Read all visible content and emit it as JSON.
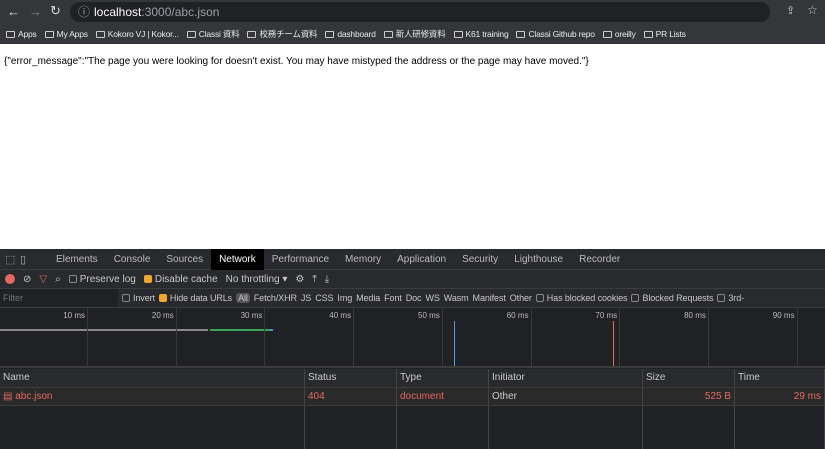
{
  "browser": {
    "url_host": "localhost",
    "url_path": ":3000/abc.json",
    "bookmarks": [
      "Apps",
      "My Apps",
      "Kokoro VJ | Kokor...",
      "Classi 資料",
      "校務チーム資料",
      "dashboard",
      "新人研修資料",
      "K61 training",
      "Classi Github repo",
      "oreilly",
      "PR Lists"
    ]
  },
  "page": {
    "body": "{\"error_message\":\"The page you were looking for doesn't exist. You may have mistyped the address or the page may have moved.\"}"
  },
  "devtools": {
    "tabs": [
      "Elements",
      "Console",
      "Sources",
      "Network",
      "Performance",
      "Memory",
      "Application",
      "Security",
      "Lighthouse",
      "Recorder"
    ],
    "active_tab": "Network",
    "toolbar": {
      "preserve_log": "Preserve log",
      "disable_cache": "Disable cache",
      "throttling": "No throttling"
    },
    "filter": {
      "placeholder": "Filter",
      "invert": "Invert",
      "hide_data_urls": "Hide data URLs",
      "types": [
        "All",
        "Fetch/XHR",
        "JS",
        "CSS",
        "Img",
        "Media",
        "Font",
        "Doc",
        "WS",
        "Wasm",
        "Manifest",
        "Other"
      ],
      "has_blocked_cookies": "Has blocked cookies",
      "blocked_requests": "Blocked Requests",
      "third_party": "3rd-"
    },
    "timeline_ticks": [
      "10 ms",
      "20 ms",
      "30 ms",
      "40 ms",
      "50 ms",
      "60 ms",
      "70 ms",
      "80 ms",
      "90 ms"
    ],
    "columns": [
      "Name",
      "Status",
      "Type",
      "Initiator",
      "Size",
      "Time"
    ],
    "requests": [
      {
        "name": "abc.json",
        "status": "404",
        "type": "document",
        "initiator": "Other",
        "size": "525 B",
        "time": "29 ms"
      }
    ]
  }
}
